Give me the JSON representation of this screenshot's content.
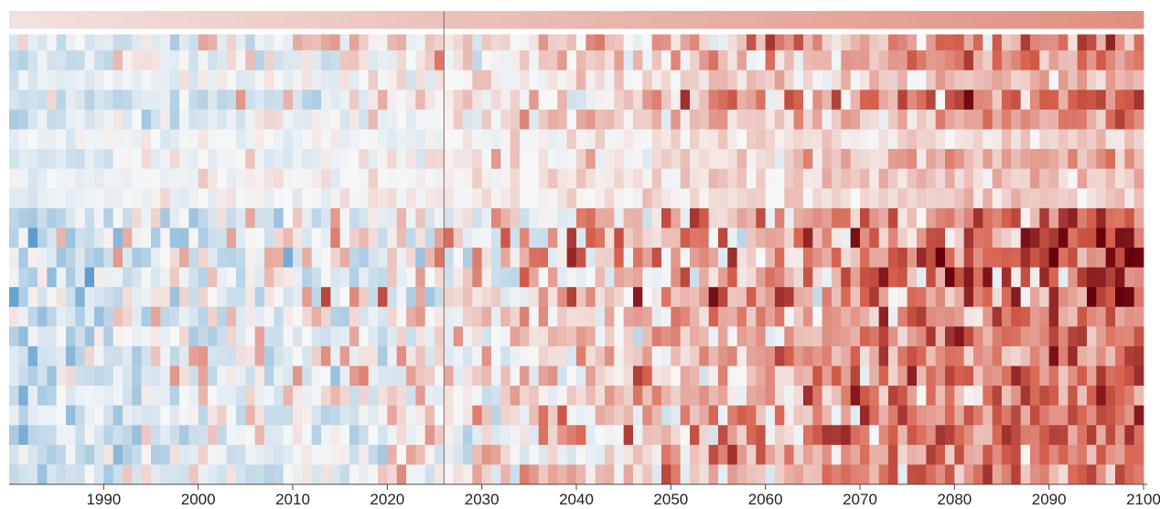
{
  "chart_data": {
    "type": "heatmap",
    "title": "",
    "xlabel": "",
    "ylabel": "",
    "x_range": [
      1980,
      2100
    ],
    "x_ticks": [
      {
        "value": 1990,
        "label": "1990"
      },
      {
        "value": 2000,
        "label": "2000"
      },
      {
        "value": 2010,
        "label": "2010"
      },
      {
        "value": 2020,
        "label": "2020"
      },
      {
        "value": 2030,
        "label": "2030"
      },
      {
        "value": 2040,
        "label": "2040"
      },
      {
        "value": 2050,
        "label": "2050"
      },
      {
        "value": 2060,
        "label": "2060"
      },
      {
        "value": 2070,
        "label": "2070"
      },
      {
        "value": 2080,
        "label": "2080"
      },
      {
        "value": 2090,
        "label": "2090"
      },
      {
        "value": 2100,
        "label": "2100"
      }
    ],
    "reference_line_year": 2026,
    "row_count": 24,
    "value_range": [
      -1,
      1
    ],
    "colormap": {
      "negative": "#2f7fc1",
      "zero": "#f7f7f7",
      "positive": "#67000d"
    },
    "grid": false,
    "legend": "none"
  }
}
